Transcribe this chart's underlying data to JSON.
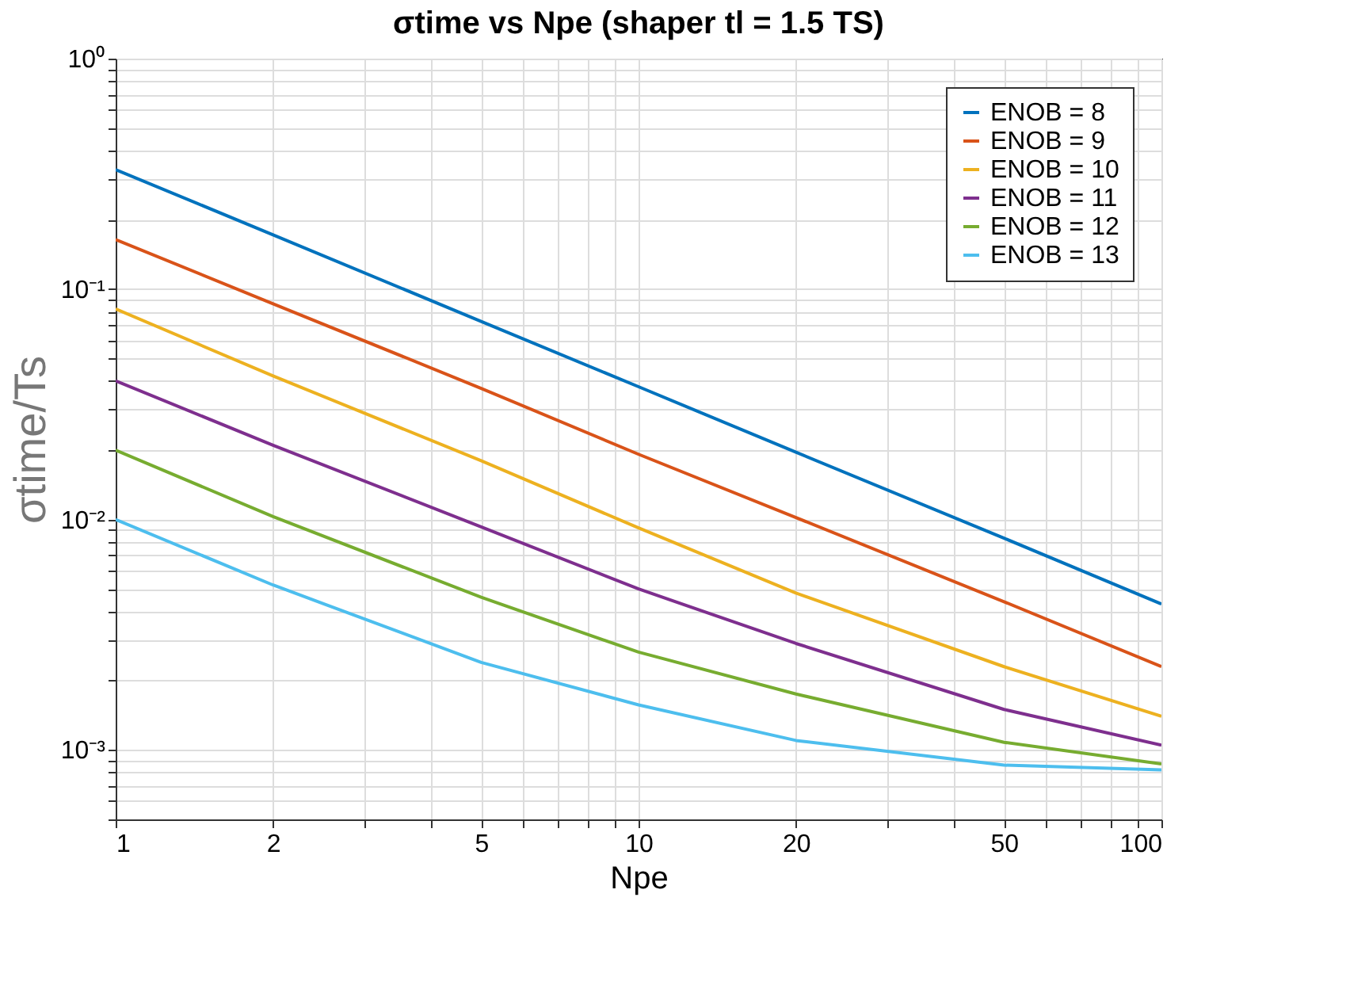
{
  "chart_data": {
    "type": "line",
    "title": "σtime vs Npe (shaper tl = 1.5 TS)",
    "xlabel": "Npe",
    "ylabel": "σtime/Ts",
    "x": [
      1,
      2,
      5,
      10,
      20,
      50,
      100
    ],
    "series": [
      {
        "name": "ENOB = 8",
        "color": "#0072bd",
        "values": [
          0.33,
          0.172,
          0.0724,
          0.0377,
          0.0196,
          0.0083,
          0.0043
        ]
      },
      {
        "name": "ENOB = 9",
        "color": "#d95319",
        "values": [
          0.164,
          0.0864,
          0.0371,
          0.0192,
          0.0102,
          0.0044,
          0.0023
        ]
      },
      {
        "name": "ENOB = 10",
        "color": "#edb120",
        "values": [
          0.082,
          0.042,
          0.018,
          0.0092,
          0.0048,
          0.0023,
          0.0014
        ]
      },
      {
        "name": "ENOB = 11",
        "color": "#7e2f8e",
        "values": [
          0.04,
          0.021,
          0.0093,
          0.005,
          0.0029,
          0.0015,
          0.00105
        ]
      },
      {
        "name": "ENOB = 12",
        "color": "#77ac30",
        "values": [
          0.02,
          0.0103,
          0.0046,
          0.00266,
          0.00175,
          0.00108,
          0.00087
        ]
      },
      {
        "name": "ENOB = 13",
        "color": "#4dbeee",
        "values": [
          0.01,
          0.0052,
          0.0024,
          0.00157,
          0.0011,
          0.00086,
          0.00082
        ]
      }
    ],
    "log": "xy",
    "xlim": [
      1,
      100
    ],
    "ylim": [
      0.0005,
      1
    ],
    "xticks": [
      1,
      2,
      {
        "value": 3,
        "label": null
      },
      {
        "value": 4,
        "label": null
      },
      5,
      {
        "value": 6,
        "label": null
      },
      {
        "value": 7,
        "label": null
      },
      {
        "value": 8,
        "label": null
      },
      {
        "value": 9,
        "label": null
      },
      10,
      20,
      {
        "value": 30,
        "label": null
      },
      {
        "value": 40,
        "label": null
      },
      50,
      {
        "value": 60,
        "label": null
      },
      {
        "value": 70,
        "label": null
      },
      {
        "value": 80,
        "label": null
      },
      {
        "value": 90,
        "label": null
      },
      100
    ],
    "yticks": [
      {
        "value": 0.0005,
        "label": null
      },
      {
        "value": 0.0006,
        "label": null
      },
      {
        "value": 0.0007,
        "label": null
      },
      {
        "value": 0.0008,
        "label": null
      },
      {
        "value": 0.0009,
        "label": null
      },
      {
        "value": 0.001,
        "label": "10⁻³"
      },
      {
        "value": 0.002,
        "label": null
      },
      {
        "value": 0.003,
        "label": null
      },
      {
        "value": 0.004,
        "label": null
      },
      {
        "value": 0.005,
        "label": null
      },
      {
        "value": 0.006,
        "label": null
      },
      {
        "value": 0.007,
        "label": null
      },
      {
        "value": 0.008,
        "label": null
      },
      {
        "value": 0.009,
        "label": null
      },
      {
        "value": 0.01,
        "label": "10⁻²"
      },
      {
        "value": 0.02,
        "label": null
      },
      {
        "value": 0.03,
        "label": null
      },
      {
        "value": 0.04,
        "label": null
      },
      {
        "value": 0.05,
        "label": null
      },
      {
        "value": 0.06,
        "label": null
      },
      {
        "value": 0.07,
        "label": null
      },
      {
        "value": 0.08,
        "label": null
      },
      {
        "value": 0.09,
        "label": null
      },
      {
        "value": 0.1,
        "label": "10⁻¹"
      },
      {
        "value": 0.2,
        "label": null
      },
      {
        "value": 0.3,
        "label": null
      },
      {
        "value": 0.4,
        "label": null
      },
      {
        "value": 0.5,
        "label": null
      },
      {
        "value": 0.6,
        "label": null
      },
      {
        "value": 0.7,
        "label": null
      },
      {
        "value": 0.8,
        "label": null
      },
      {
        "value": 0.9,
        "label": null
      },
      {
        "value": 1,
        "label": "10⁰"
      }
    ],
    "grid": true,
    "legend": "top right",
    "line_style": "solid",
    "marker": "none"
  }
}
